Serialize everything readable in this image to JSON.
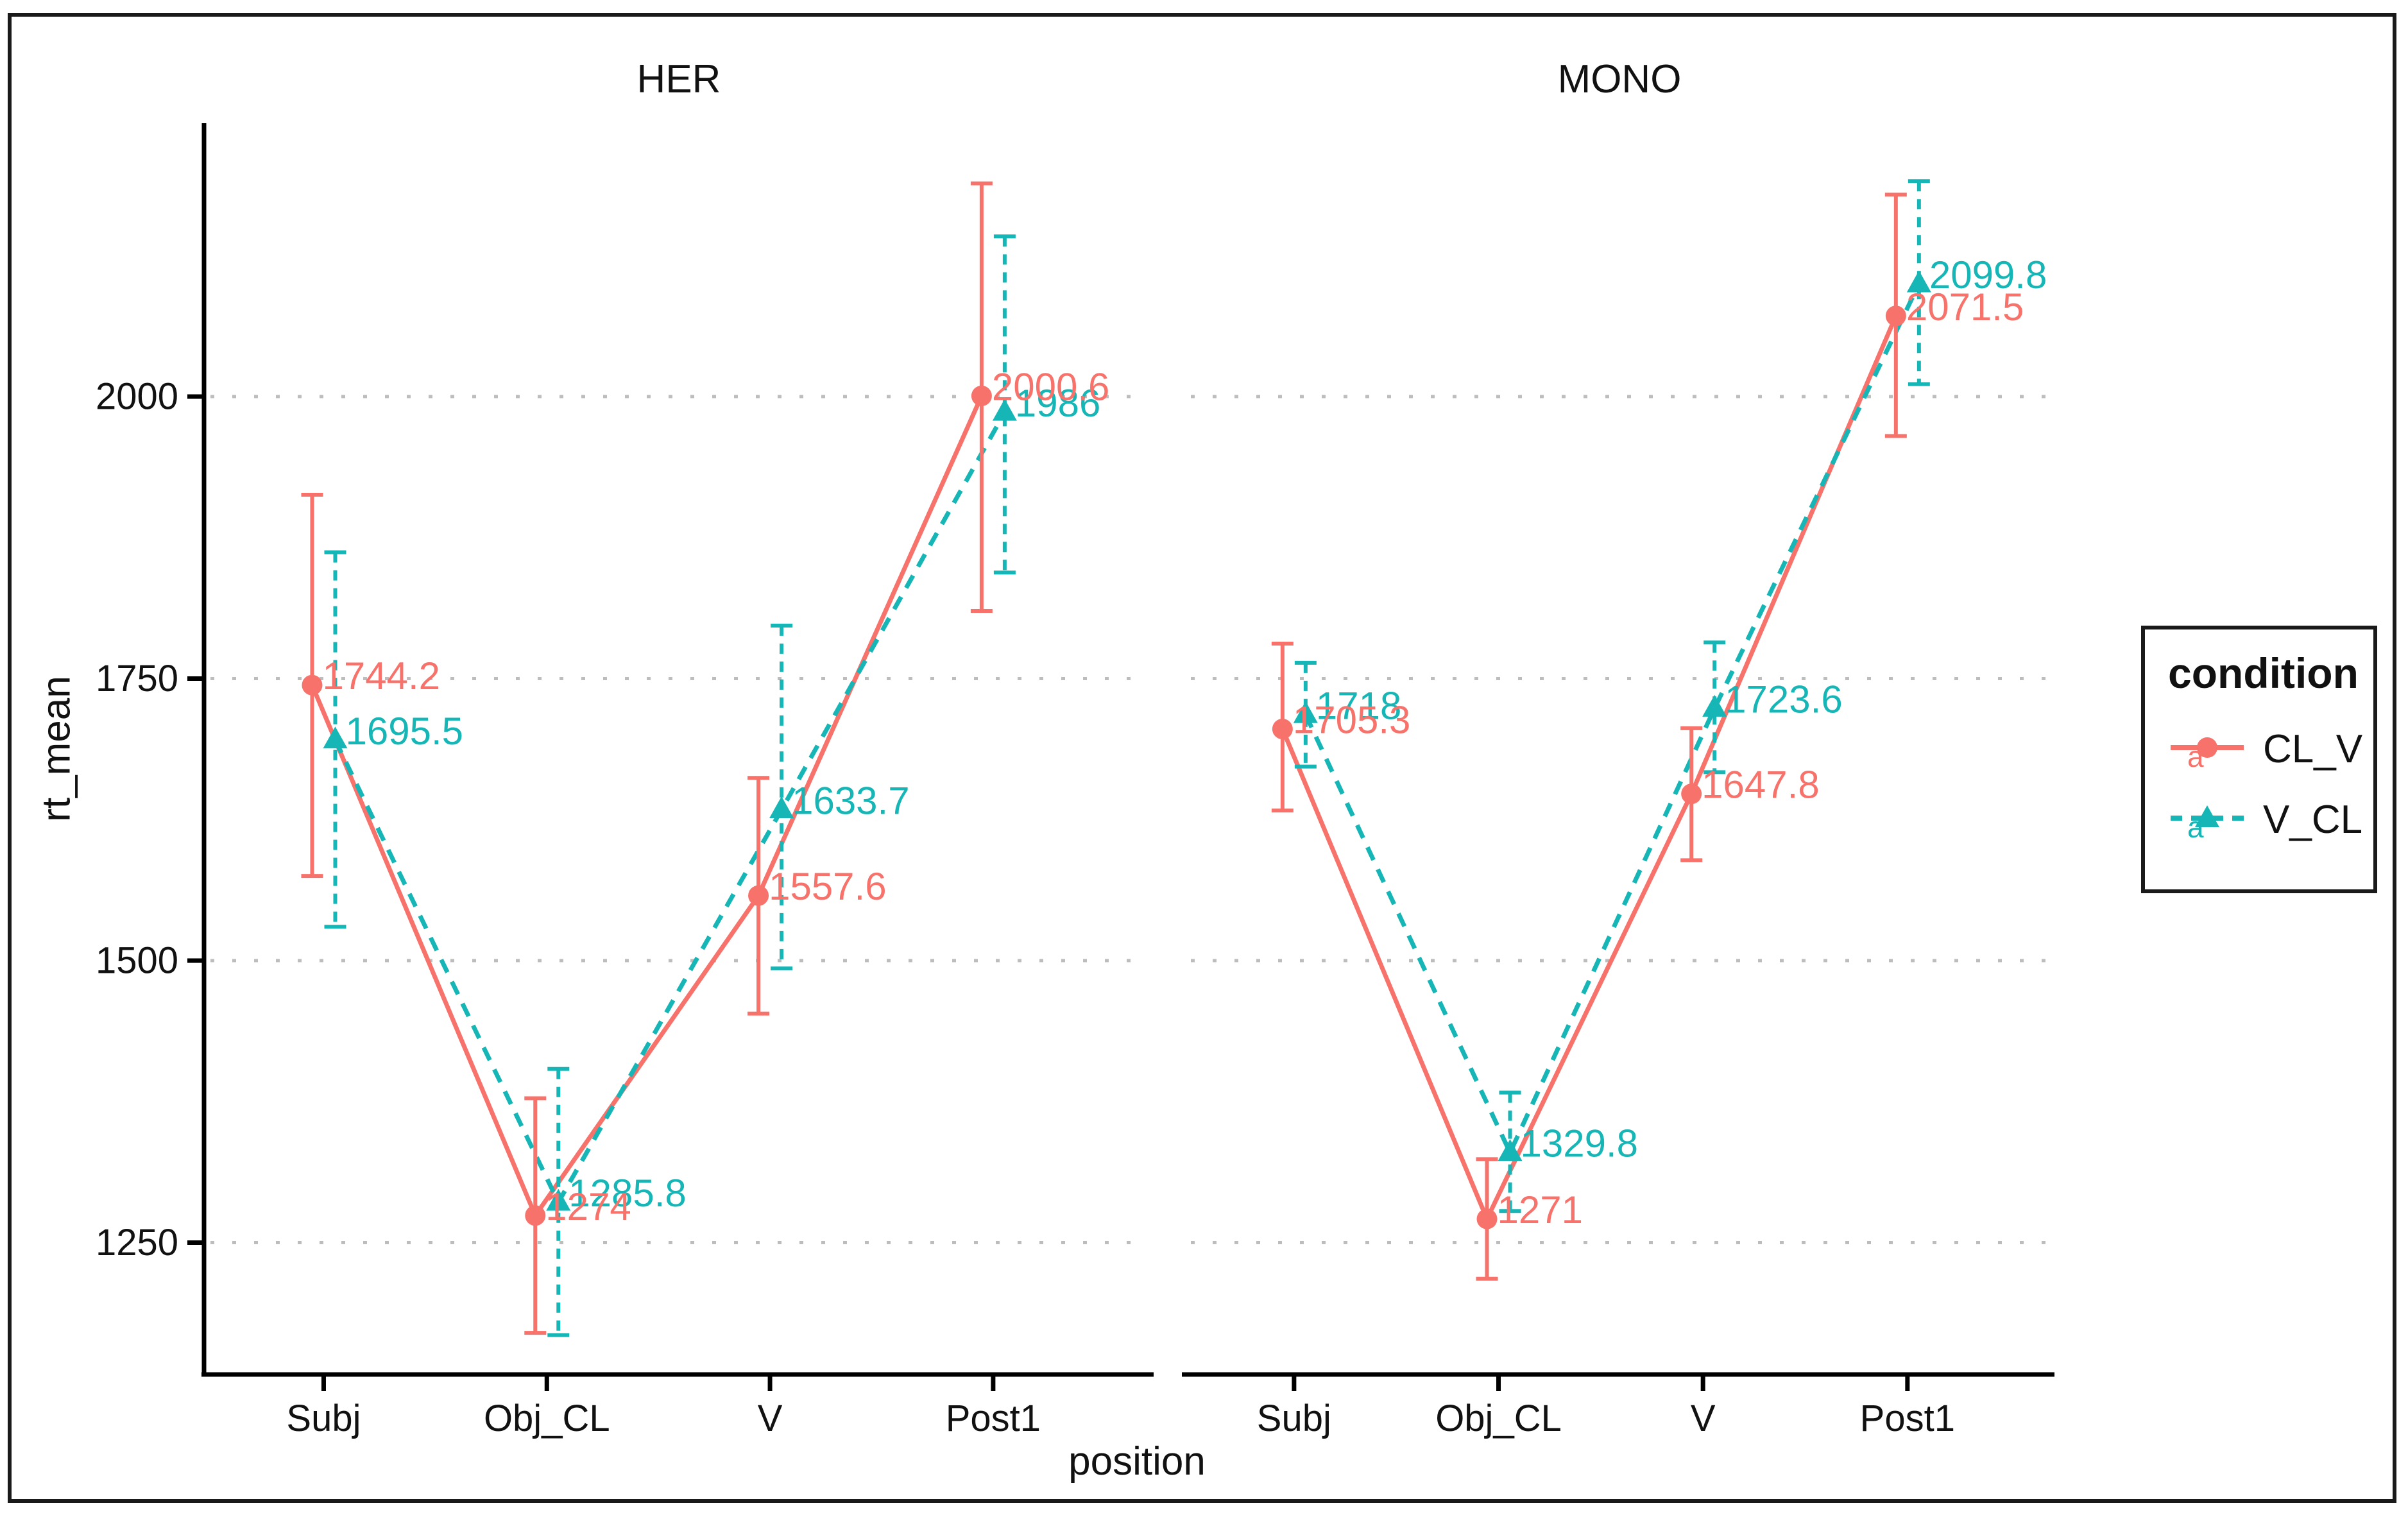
{
  "window": {
    "background": "#FFFFFF",
    "border_color": "#1a1a1a"
  },
  "chart_data": {
    "type": "line",
    "xlabel": "position",
    "ylabel": "rt_mean",
    "categories": [
      "Subj",
      "Obj_CL",
      "V",
      "Post1"
    ],
    "yticks": [
      1250,
      1500,
      1750,
      2000
    ],
    "ylim": [
      1135,
      2240
    ],
    "grid": "horizontal-dotted",
    "grid_color": "#BDBDBD",
    "legend_position": "right",
    "legend": {
      "title": "condition",
      "entries": [
        {
          "label": "CL_V",
          "color": "#F7726B",
          "marker": "circle",
          "linestyle": "solid",
          "key_letter": "a"
        },
        {
          "label": "V_CL",
          "color": "#16B5B6",
          "marker": "triangle",
          "linestyle": "dashed",
          "key_letter": "a"
        }
      ]
    },
    "facets": [
      {
        "label": "HER",
        "series": [
          {
            "name": "CL_V",
            "color": "#F7726B",
            "linestyle": "solid",
            "marker": "circle",
            "values": [
              1744.2,
              1274,
              1557.6,
              2000.6
            ],
            "value_labels": [
              "1744.2",
              "1274",
              "1557.6",
              "2000.6"
            ],
            "error_low": [
              1575,
              1170,
              1453,
              1810
            ],
            "error_high": [
              1913,
              1378,
              1662,
              2189
            ]
          },
          {
            "name": "V_CL",
            "color": "#16B5B6",
            "linestyle": "dashed",
            "marker": "triangle",
            "values": [
              1695.5,
              1285.8,
              1633.7,
              1986
            ],
            "value_labels": [
              "1695.5",
              "1285.8",
              "1633.7",
              "1986"
            ],
            "error_low": [
              1530,
              1168,
              1493,
              1844
            ],
            "error_high": [
              1862,
              1404,
              1797,
              2142
            ]
          }
        ]
      },
      {
        "label": "MONO",
        "series": [
          {
            "name": "CL_V",
            "color": "#F7726B",
            "linestyle": "solid",
            "marker": "circle",
            "values": [
              1705.3,
              1271,
              1647.8,
              2071.5
            ],
            "value_labels": [
              "1705.3",
              "1271",
              "1647.8",
              "2071.5"
            ],
            "error_low": [
              1633,
              1218,
              1589,
              1965
            ],
            "error_high": [
              1781,
              1324,
              1706,
              2179
            ]
          },
          {
            "name": "V_CL",
            "color": "#16B5B6",
            "linestyle": "dashed",
            "marker": "triangle",
            "values": [
              1718,
              1329.8,
              1723.6,
              2099.8
            ],
            "value_labels": [
              "1718",
              "1329.8",
              "1723.6",
              "2099.8"
            ],
            "error_low": [
              1672,
              1278,
              1667,
              2011
            ],
            "error_high": [
              1764,
              1383,
              1782,
              2191
            ]
          }
        ]
      }
    ]
  }
}
